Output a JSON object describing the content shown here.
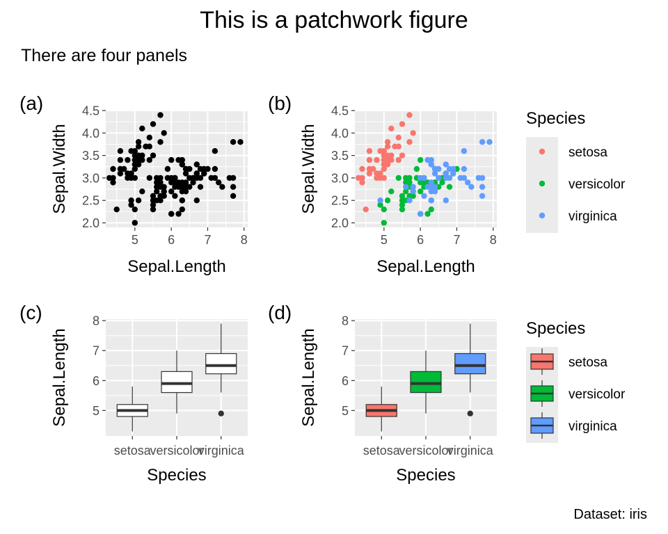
{
  "figure": {
    "title": "This is a patchwork figure",
    "subtitle": "There are four panels",
    "caption": "Dataset: iris",
    "colors": {
      "setosa": "#F8766D",
      "versicolor": "#00BA38",
      "virginica": "#619CFF",
      "panel_bg": "#EBEBEB",
      "grid": "#FFFFFF"
    }
  },
  "chart_data": [
    {
      "tag": "(a)",
      "type": "scatter",
      "xlabel": "Sepal.Length",
      "ylabel": "Sepal.Width",
      "xlim": [
        4.2,
        8.1
      ],
      "ylim": [
        1.9,
        4.5
      ],
      "xticks": [
        5,
        6,
        7,
        8
      ],
      "yticks": [
        2.0,
        2.5,
        3.0,
        3.5,
        4.0,
        4.5
      ],
      "ytick_labels": [
        "2.0",
        "2.5",
        "3.0",
        "3.5",
        "4.0",
        "4.5"
      ],
      "color_by_species": false,
      "point_color": "#000000",
      "legend": null
    },
    {
      "tag": "(b)",
      "type": "scatter",
      "xlabel": "Sepal.Length",
      "ylabel": "Sepal.Width",
      "xlim": [
        4.2,
        8.1
      ],
      "ylim": [
        1.9,
        4.5
      ],
      "xticks": [
        5,
        6,
        7,
        8
      ],
      "yticks": [
        2.0,
        2.5,
        3.0,
        3.5,
        4.0,
        4.5
      ],
      "ytick_labels": [
        "2.0",
        "2.5",
        "3.0",
        "3.5",
        "4.0",
        "4.5"
      ],
      "color_by_species": true,
      "legend": {
        "title": "Species",
        "position": "right",
        "entries": [
          "setosa",
          "versicolor",
          "virginica"
        ]
      }
    },
    {
      "tag": "(c)",
      "type": "box",
      "xlabel": "Species",
      "ylabel": "Sepal.Length",
      "categories": [
        "setosa",
        "versicolor",
        "virginica"
      ],
      "ylim": [
        4.15,
        8.05
      ],
      "yticks": [
        5,
        6,
        7,
        8
      ],
      "ytick_labels": [
        "5",
        "6",
        "7",
        "8"
      ],
      "fill_by_species": false,
      "box_fill": "#FFFFFF",
      "legend": null
    },
    {
      "tag": "(d)",
      "type": "box",
      "xlabel": "Species",
      "ylabel": "Sepal.Length",
      "categories": [
        "setosa",
        "versicolor",
        "virginica"
      ],
      "ylim": [
        4.15,
        8.05
      ],
      "yticks": [
        5,
        6,
        7,
        8
      ],
      "ytick_labels": [
        "5",
        "6",
        "7",
        "8"
      ],
      "fill_by_species": true,
      "legend": {
        "title": "Species",
        "position": "right",
        "entries": [
          "setosa",
          "versicolor",
          "virginica"
        ]
      }
    }
  ],
  "points": {
    "setosa": [
      [
        4.3,
        3.0
      ],
      [
        4.4,
        2.9
      ],
      [
        4.4,
        3.0
      ],
      [
        4.4,
        3.2
      ],
      [
        4.5,
        2.3
      ],
      [
        4.6,
        3.1
      ],
      [
        4.6,
        3.2
      ],
      [
        4.6,
        3.4
      ],
      [
        4.6,
        3.6
      ],
      [
        4.7,
        3.2
      ],
      [
        4.8,
        3.0
      ],
      [
        4.8,
        3.1
      ],
      [
        4.8,
        3.4
      ],
      [
        4.9,
        3.0
      ],
      [
        4.9,
        3.1
      ],
      [
        4.9,
        3.6
      ],
      [
        5.0,
        3.0
      ],
      [
        5.0,
        3.2
      ],
      [
        5.0,
        3.3
      ],
      [
        5.0,
        3.4
      ],
      [
        5.0,
        3.5
      ],
      [
        5.0,
        3.6
      ],
      [
        5.1,
        3.3
      ],
      [
        5.1,
        3.4
      ],
      [
        5.1,
        3.5
      ],
      [
        5.1,
        3.7
      ],
      [
        5.1,
        3.8
      ],
      [
        5.2,
        3.4
      ],
      [
        5.2,
        3.5
      ],
      [
        5.2,
        4.1
      ],
      [
        5.3,
        3.7
      ],
      [
        5.4,
        3.4
      ],
      [
        5.4,
        3.7
      ],
      [
        5.4,
        3.9
      ],
      [
        5.5,
        3.5
      ],
      [
        5.5,
        4.2
      ],
      [
        5.7,
        3.8
      ],
      [
        5.7,
        4.4
      ],
      [
        5.8,
        4.0
      ]
    ],
    "versicolor": [
      [
        4.9,
        2.4
      ],
      [
        5.0,
        2.0
      ],
      [
        5.0,
        2.3
      ],
      [
        5.1,
        2.5
      ],
      [
        5.2,
        2.7
      ],
      [
        5.4,
        3.0
      ],
      [
        5.5,
        2.3
      ],
      [
        5.5,
        2.4
      ],
      [
        5.5,
        2.5
      ],
      [
        5.5,
        2.6
      ],
      [
        5.6,
        2.5
      ],
      [
        5.6,
        2.7
      ],
      [
        5.6,
        2.9
      ],
      [
        5.6,
        3.0
      ],
      [
        5.7,
        2.6
      ],
      [
        5.7,
        2.8
      ],
      [
        5.7,
        2.9
      ],
      [
        5.7,
        3.0
      ],
      [
        5.8,
        2.6
      ],
      [
        5.8,
        2.7
      ],
      [
        5.9,
        3.0
      ],
      [
        5.9,
        3.2
      ],
      [
        6.0,
        2.2
      ],
      [
        6.0,
        2.7
      ],
      [
        6.0,
        2.9
      ],
      [
        6.0,
        3.4
      ],
      [
        6.1,
        2.8
      ],
      [
        6.1,
        2.9
      ],
      [
        6.1,
        3.0
      ],
      [
        6.2,
        2.2
      ],
      [
        6.2,
        2.9
      ],
      [
        6.3,
        2.3
      ],
      [
        6.3,
        2.5
      ],
      [
        6.3,
        3.3
      ],
      [
        6.4,
        2.9
      ],
      [
        6.4,
        3.2
      ],
      [
        6.5,
        2.8
      ],
      [
        6.6,
        2.9
      ],
      [
        6.6,
        3.0
      ],
      [
        6.7,
        3.0
      ],
      [
        6.7,
        3.1
      ],
      [
        6.8,
        2.8
      ],
      [
        6.9,
        3.1
      ],
      [
        7.0,
        3.2
      ]
    ],
    "virginica": [
      [
        4.9,
        2.5
      ],
      [
        5.6,
        2.8
      ],
      [
        5.7,
        2.5
      ],
      [
        5.8,
        2.7
      ],
      [
        5.8,
        2.8
      ],
      [
        6.0,
        2.2
      ],
      [
        6.0,
        3.0
      ],
      [
        6.1,
        2.6
      ],
      [
        6.1,
        3.0
      ],
      [
        6.2,
        2.8
      ],
      [
        6.2,
        3.4
      ],
      [
        6.3,
        2.5
      ],
      [
        6.3,
        2.7
      ],
      [
        6.3,
        2.8
      ],
      [
        6.3,
        2.9
      ],
      [
        6.3,
        3.3
      ],
      [
        6.3,
        3.4
      ],
      [
        6.4,
        2.7
      ],
      [
        6.4,
        2.8
      ],
      [
        6.4,
        3.1
      ],
      [
        6.4,
        3.2
      ],
      [
        6.5,
        3.0
      ],
      [
        6.5,
        3.2
      ],
      [
        6.7,
        2.5
      ],
      [
        6.7,
        3.0
      ],
      [
        6.7,
        3.1
      ],
      [
        6.7,
        3.3
      ],
      [
        6.8,
        3.0
      ],
      [
        6.8,
        3.2
      ],
      [
        6.9,
        3.1
      ],
      [
        6.9,
        3.2
      ],
      [
        7.1,
        3.0
      ],
      [
        7.2,
        3.0
      ],
      [
        7.2,
        3.2
      ],
      [
        7.2,
        3.6
      ],
      [
        7.3,
        2.9
      ],
      [
        7.4,
        2.8
      ],
      [
        7.6,
        3.0
      ],
      [
        7.7,
        2.6
      ],
      [
        7.7,
        2.8
      ],
      [
        7.7,
        3.0
      ],
      [
        7.7,
        3.8
      ],
      [
        7.9,
        3.8
      ]
    ]
  },
  "boxes": {
    "setosa": {
      "lower_whisker": 4.3,
      "q1": 4.8,
      "median": 5.0,
      "q3": 5.2,
      "upper_whisker": 5.8,
      "outliers": []
    },
    "versicolor": {
      "lower_whisker": 4.9,
      "q1": 5.6,
      "median": 5.9,
      "q3": 6.3,
      "upper_whisker": 7.0,
      "outliers": []
    },
    "virginica": {
      "lower_whisker": 5.6,
      "q1": 6.225,
      "median": 6.5,
      "q3": 6.9,
      "upper_whisker": 7.9,
      "outliers": [
        4.9
      ]
    }
  }
}
